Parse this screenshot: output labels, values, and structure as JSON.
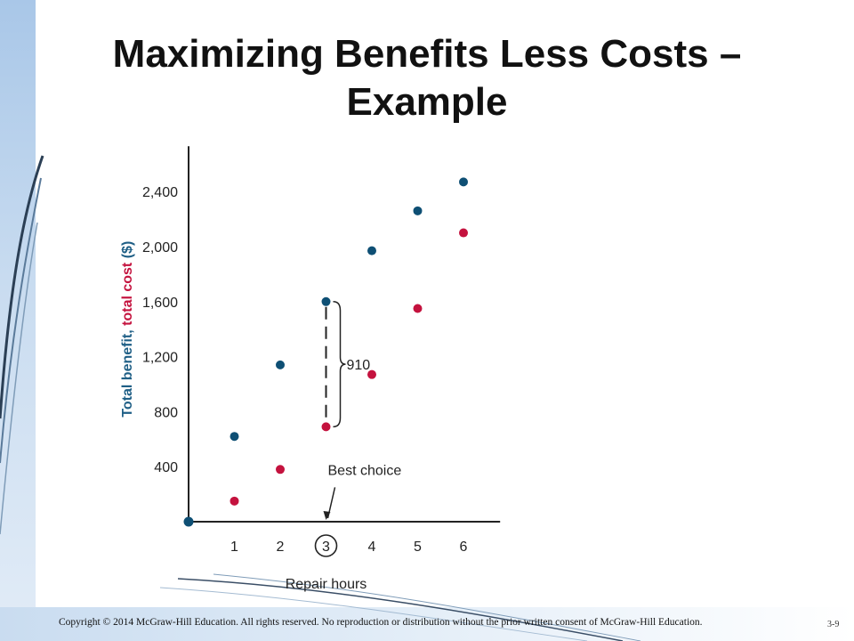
{
  "slide": {
    "title": "Maximizing Benefits Less Costs – Example",
    "copyright": "Copyright © 2014 McGraw-Hill Education. All rights reserved. No reproduction or distribution without the prior written consent of McGraw-Hill Education.",
    "page_number": "3-9"
  },
  "chart_data": {
    "type": "scatter",
    "xlabel": "Repair hours",
    "ylabel_parts": [
      {
        "text": "Total benefit, ",
        "color": "#1f5f86"
      },
      {
        "text": "total cost",
        "color": "#c4123e"
      },
      {
        "text": " ($)",
        "color": "#1f5f86"
      }
    ],
    "x_ticks": [
      "1",
      "2",
      "3",
      "4",
      "5",
      "6"
    ],
    "y_ticks": [
      "400",
      "800",
      "1,200",
      "1,600",
      "2,000",
      "2,400"
    ],
    "y_tick_values": [
      400,
      800,
      1200,
      1600,
      2000,
      2400
    ],
    "xlim": [
      0,
      6.8
    ],
    "ylim": [
      0,
      2700
    ],
    "origin_point": {
      "x": 0,
      "y": 0,
      "color": "#0e4f74"
    },
    "series": [
      {
        "key": "benefit",
        "color": "#0e4f74",
        "x": [
          1,
          2,
          3,
          4,
          5,
          6
        ],
        "y": [
          620,
          1140,
          1600,
          1970,
          2260,
          2470
        ]
      },
      {
        "key": "cost",
        "color": "#c4123e",
        "x": [
          1,
          2,
          3,
          4,
          5,
          6
        ],
        "y": [
          150,
          380,
          690,
          1070,
          1550,
          2100
        ]
      }
    ],
    "annotations": [
      {
        "type": "difference-bracket",
        "x": 3,
        "y_low": 690,
        "y_high": 1600,
        "label": "910"
      },
      {
        "type": "arrow-callout",
        "x": 3,
        "label": "Best choice",
        "circled_tick": "3"
      }
    ]
  }
}
